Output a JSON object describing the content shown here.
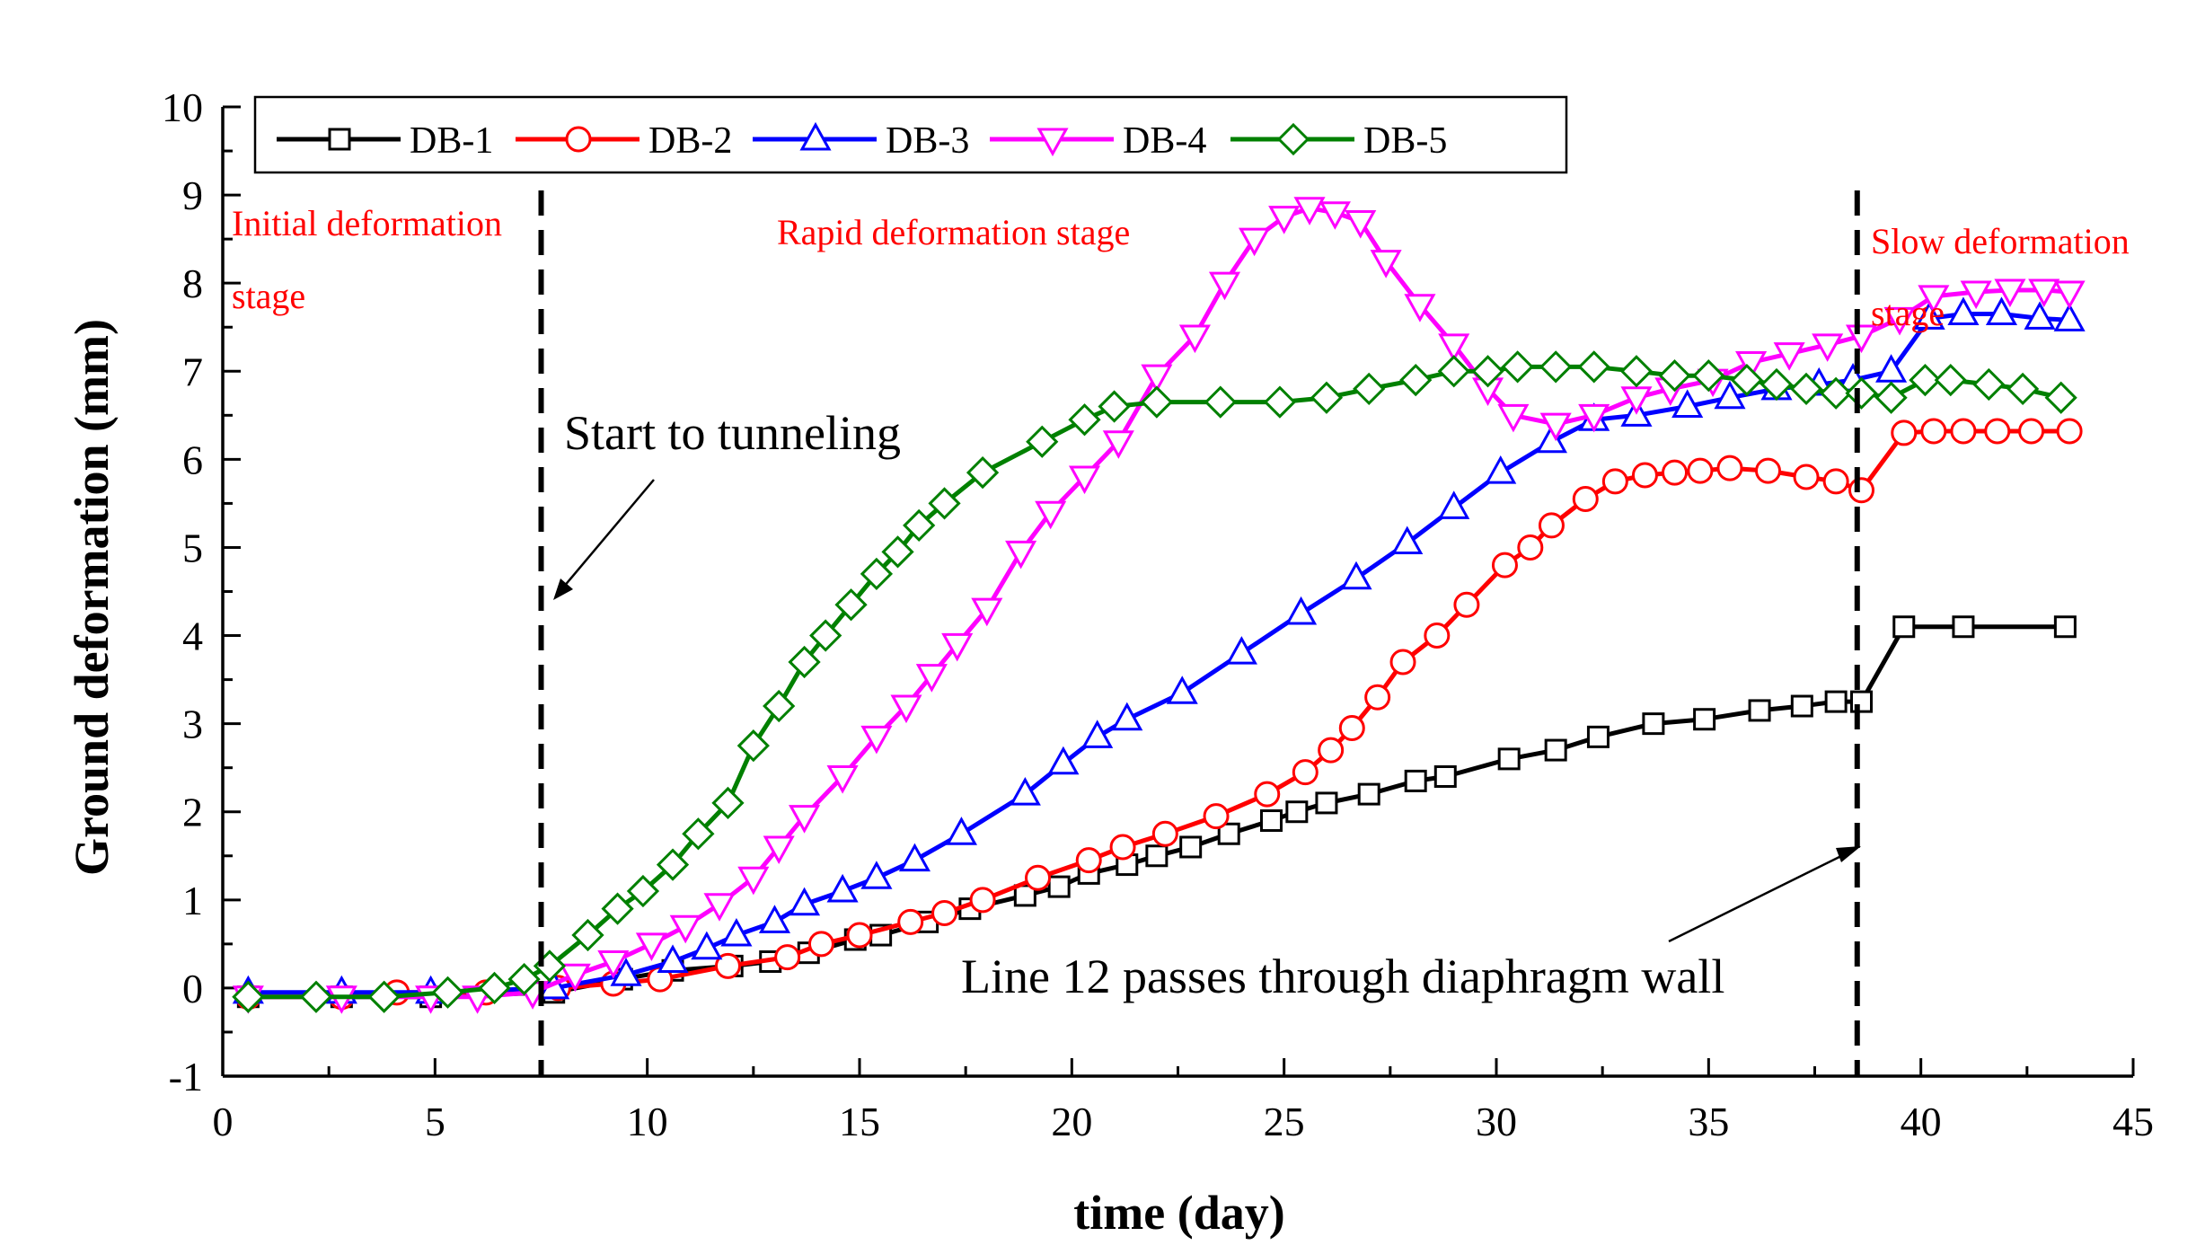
{
  "chart_data": {
    "type": "line",
    "title": "",
    "xlabel": "time (day)",
    "ylabel": "Ground deformation (mm)",
    "xlim": [
      0,
      45
    ],
    "ylim": [
      -1,
      10
    ],
    "xticks": [
      "0",
      "5",
      "10",
      "15",
      "20",
      "25",
      "30",
      "35",
      "40",
      "45"
    ],
    "yticks": [
      "-1",
      "0",
      "1",
      "2",
      "3",
      "4",
      "5",
      "6",
      "7",
      "8",
      "9",
      "10"
    ],
    "series": [
      {
        "name": "DB-1",
        "color": "#000000",
        "marker": "square",
        "x": [
          0.6,
          2.8,
          4.9,
          7.8,
          9.4,
          10.6,
          12.0,
          12.9,
          13.8,
          14.9,
          15.5,
          16.6,
          17.6,
          18.9,
          19.7,
          20.4,
          21.3,
          22.0,
          22.8,
          23.7,
          24.7,
          25.3,
          26.0,
          27.0,
          28.1,
          28.8,
          30.3,
          31.4,
          32.4,
          33.7,
          34.9,
          36.2,
          37.2,
          38.0,
          38.6,
          39.6,
          41.0,
          43.4
        ],
        "y": [
          -0.1,
          -0.1,
          -0.1,
          -0.05,
          0.1,
          0.2,
          0.25,
          0.3,
          0.4,
          0.55,
          0.6,
          0.75,
          0.9,
          1.05,
          1.15,
          1.3,
          1.4,
          1.5,
          1.6,
          1.75,
          1.9,
          2.0,
          2.1,
          2.2,
          2.35,
          2.4,
          2.6,
          2.7,
          2.85,
          3.0,
          3.05,
          3.15,
          3.2,
          3.25,
          3.25,
          4.1,
          4.1,
          4.1
        ]
      },
      {
        "name": "DB-2",
        "color": "#ff0000",
        "marker": "circle",
        "x": [
          0.6,
          2.8,
          4.1,
          6.2,
          7.9,
          9.2,
          10.3,
          11.9,
          13.3,
          14.1,
          15.0,
          16.2,
          17.0,
          17.9,
          19.2,
          20.4,
          21.2,
          22.2,
          23.4,
          24.6,
          25.5,
          26.1,
          26.6,
          27.2,
          27.8,
          28.6,
          29.3,
          30.2,
          30.8,
          31.3,
          32.1,
          32.8,
          33.5,
          34.2,
          34.8,
          35.5,
          36.4,
          37.3,
          38.0,
          38.6,
          39.6,
          40.3,
          41.0,
          41.8,
          42.6,
          43.5
        ],
        "y": [
          -0.1,
          -0.1,
          -0.05,
          -0.05,
          0.0,
          0.05,
          0.1,
          0.25,
          0.35,
          0.5,
          0.6,
          0.75,
          0.85,
          1.0,
          1.25,
          1.45,
          1.6,
          1.75,
          1.95,
          2.2,
          2.45,
          2.7,
          2.95,
          3.3,
          3.7,
          4.0,
          4.35,
          4.8,
          5.0,
          5.25,
          5.55,
          5.75,
          5.82,
          5.85,
          5.87,
          5.9,
          5.87,
          5.8,
          5.75,
          5.65,
          6.3,
          6.32,
          6.32,
          6.32,
          6.32,
          6.32
        ]
      },
      {
        "name": "DB-3",
        "color": "#0000ff",
        "marker": "triangle-up",
        "x": [
          0.6,
          2.8,
          4.9,
          7.8,
          9.5,
          10.6,
          11.4,
          12.1,
          13.0,
          13.7,
          14.6,
          15.4,
          16.3,
          17.4,
          18.9,
          19.8,
          20.6,
          21.3,
          22.6,
          24.0,
          25.4,
          26.7,
          27.9,
          29.0,
          30.1,
          31.3,
          32.3,
          33.3,
          34.5,
          35.5,
          36.6,
          37.6,
          38.4,
          39.3,
          40.2,
          41.0,
          41.9,
          42.8,
          43.5
        ],
        "y": [
          -0.05,
          -0.05,
          -0.05,
          0.0,
          0.15,
          0.3,
          0.45,
          0.6,
          0.75,
          0.95,
          1.1,
          1.25,
          1.45,
          1.75,
          2.2,
          2.55,
          2.85,
          3.05,
          3.35,
          3.8,
          4.25,
          4.65,
          5.05,
          5.45,
          5.85,
          6.2,
          6.45,
          6.5,
          6.6,
          6.7,
          6.8,
          6.85,
          6.9,
          7.0,
          7.6,
          7.65,
          7.65,
          7.6,
          7.58
        ]
      },
      {
        "name": "DB-4",
        "color": "#ff00ff",
        "marker": "triangle-down",
        "x": [
          0.6,
          2.8,
          4.9,
          6.0,
          7.3,
          8.3,
          9.2,
          10.1,
          10.9,
          11.7,
          12.5,
          13.1,
          13.7,
          14.6,
          15.4,
          16.1,
          16.7,
          17.3,
          18.0,
          18.8,
          19.5,
          20.3,
          21.1,
          22.0,
          22.9,
          23.6,
          24.3,
          25.0,
          25.6,
          26.2,
          26.8,
          27.4,
          28.2,
          29.0,
          29.8,
          30.4,
          31.4,
          32.3,
          33.3,
          34.1,
          35.1,
          36.0,
          36.9,
          37.8,
          38.6,
          39.5,
          40.3,
          41.3,
          42.1,
          42.9,
          43.5
        ],
        "y": [
          -0.1,
          -0.1,
          -0.1,
          -0.1,
          -0.05,
          0.15,
          0.3,
          0.5,
          0.7,
          0.95,
          1.25,
          1.6,
          1.95,
          2.4,
          2.85,
          3.2,
          3.55,
          3.9,
          4.3,
          4.95,
          5.4,
          5.8,
          6.2,
          6.95,
          7.4,
          8.0,
          8.5,
          8.75,
          8.85,
          8.8,
          8.7,
          8.25,
          7.75,
          7.3,
          6.8,
          6.5,
          6.4,
          6.5,
          6.7,
          6.8,
          6.9,
          7.1,
          7.2,
          7.3,
          7.4,
          7.6,
          7.85,
          7.9,
          7.92,
          7.92,
          7.9
        ]
      },
      {
        "name": "DB-5",
        "color": "#008000",
        "marker": "diamond",
        "x": [
          0.6,
          2.2,
          3.8,
          5.3,
          6.4,
          7.1,
          7.7,
          8.6,
          9.3,
          9.9,
          10.6,
          11.2,
          11.9,
          12.5,
          13.1,
          13.7,
          14.2,
          14.8,
          15.4,
          15.9,
          16.4,
          17.0,
          17.9,
          19.3,
          20.3,
          21.0,
          22.0,
          23.5,
          24.9,
          26.0,
          27.0,
          28.1,
          29.0,
          29.8,
          30.5,
          31.4,
          32.3,
          33.3,
          34.2,
          35.0,
          35.9,
          36.6,
          37.3,
          38.0,
          38.6,
          39.3,
          40.1,
          40.7,
          41.6,
          42.4,
          43.3
        ],
        "y": [
          -0.1,
          -0.1,
          -0.1,
          -0.05,
          0.0,
          0.1,
          0.25,
          0.6,
          0.9,
          1.1,
          1.4,
          1.75,
          2.1,
          2.75,
          3.2,
          3.7,
          4.0,
          4.35,
          4.7,
          4.95,
          5.25,
          5.5,
          5.85,
          6.2,
          6.45,
          6.6,
          6.65,
          6.65,
          6.65,
          6.7,
          6.8,
          6.9,
          7.0,
          7.0,
          7.05,
          7.05,
          7.05,
          7.0,
          6.95,
          6.95,
          6.9,
          6.85,
          6.8,
          6.75,
          6.75,
          6.7,
          6.9,
          6.9,
          6.85,
          6.8,
          6.7
        ]
      }
    ],
    "legend": [
      "DB-1",
      "DB-2",
      "DB-3",
      "DB-4",
      "DB-5"
    ],
    "legend_position": "top",
    "stage_boundaries": [
      {
        "x": 7.5,
        "label": "Start to tunneling"
      },
      {
        "x": 38.5,
        "label": "Line 12 passes through diaphragm wall"
      }
    ],
    "stages": {
      "initial": [
        "Initial deformation",
        "stage"
      ],
      "rapid": "Rapid deformation stage",
      "slow": [
        "Slow deformation",
        "stage"
      ]
    }
  }
}
